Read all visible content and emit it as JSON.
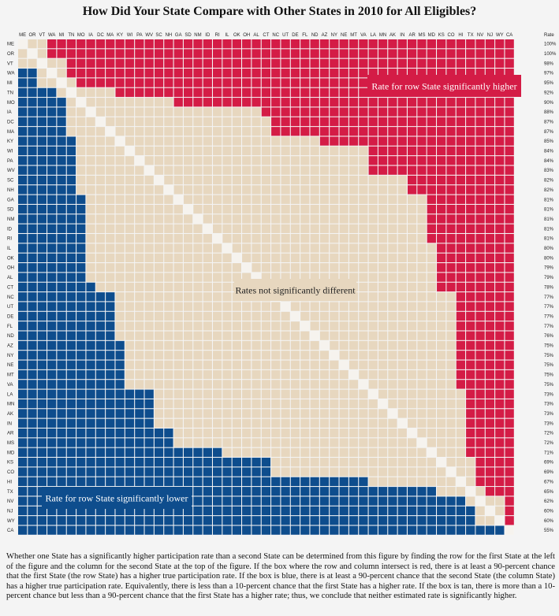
{
  "title": "How Did Your State Compare with Other States in 2010 for All Eligibles?",
  "caption": "Whether one State has a significantly higher participation rate than a second State can be determined from this figure by finding the row for the first State at the left of the figure and the column for the second State at the top of the figure. If the box where the row and column intersect is red, there is at least a 90-percent chance that the first State (the row State) has a higher true participation rate. If the box is blue, there is at least a 90-percent chance that the second State (the column State) has a higher true participation rate. Equivalently, there is less than a 10-percent chance that the first State has a higher rate. If the box is tan, there is more than a 10-percent chance but less than a 90-percent chance that the first State has a higher rate; thus, we conclude that neither estimated rate is significantly higher.",
  "colors": {
    "higher": "#d41c46",
    "lower": "#0e4d8d",
    "not_different": "#e7d7bf",
    "diagonal": "#f6f3ee"
  },
  "chart_data": {
    "type": "heatmap",
    "title": "How Did Your State Compare with Other States in 2010 for All Eligibles?",
    "column_header_extra": "Rate",
    "states": [
      "ME",
      "OR",
      "VT",
      "WA",
      "MI",
      "TN",
      "MO",
      "IA",
      "DC",
      "MA",
      "KY",
      "WI",
      "PA",
      "WV",
      "SC",
      "NH",
      "GA",
      "SD",
      "NM",
      "ID",
      "RI",
      "IL",
      "OK",
      "OH",
      "AL",
      "CT",
      "NC",
      "UT",
      "DE",
      "FL",
      "ND",
      "AZ",
      "NY",
      "NE",
      "MT",
      "VA",
      "LA",
      "MN",
      "AK",
      "IN",
      "AR",
      "MS",
      "MD",
      "KS",
      "CO",
      "HI",
      "TX",
      "NV",
      "NJ",
      "WY",
      "CA"
    ],
    "rates": [
      "100%",
      "100%",
      "98%",
      "97%",
      "95%",
      "92%",
      "90%",
      "88%",
      "87%",
      "87%",
      "85%",
      "84%",
      "84%",
      "83%",
      "82%",
      "82%",
      "81%",
      "81%",
      "81%",
      "81%",
      "81%",
      "80%",
      "80%",
      "79%",
      "79%",
      "78%",
      "77%",
      "77%",
      "77%",
      "77%",
      "76%",
      "75%",
      "75%",
      "75%",
      "75%",
      "75%",
      "73%",
      "73%",
      "73%",
      "73%",
      "72%",
      "72%",
      "71%",
      "69%",
      "69%",
      "67%",
      "65%",
      "62%",
      "60%",
      "60%",
      "55%"
    ],
    "rule": "cell(row i, col j) = higher (red) if rate[i] significantly exceeds rate[j]; lower (blue) if significantly below; not_different (tan) otherwise",
    "legend": {
      "higher": "Rate for row State significantly higher",
      "lower": "Rate for row State significantly lower",
      "not_different": "Rates not significantly different"
    },
    "significance_threshold_points": [
      {
        "rate": 100,
        "threshold": 0.5
      },
      {
        "rate": 98,
        "threshold": 3.5
      },
      {
        "rate": 95,
        "threshold": 4
      },
      {
        "rate": 90,
        "threshold": 5.5
      },
      {
        "rate": 87,
        "threshold": 7.5
      },
      {
        "rate": 84,
        "threshold": 9.5
      },
      {
        "rate": 81,
        "threshold": 11.5
      },
      {
        "rate": 79,
        "threshold": 12.5
      },
      {
        "rate": 77,
        "threshold": 11.5
      },
      {
        "rate": 75,
        "threshold": 9.5
      },
      {
        "rate": 73,
        "threshold": 8
      },
      {
        "rate": 71,
        "threshold": 6.5
      },
      {
        "rate": 69,
        "threshold": 5.5
      },
      {
        "rate": 67,
        "threshold": 4
      },
      {
        "rate": 65,
        "threshold": 3.5
      },
      {
        "rate": 62,
        "threshold": 3
      },
      {
        "rate": 60,
        "threshold": 2.5
      },
      {
        "rate": 55,
        "threshold": 2
      }
    ]
  }
}
